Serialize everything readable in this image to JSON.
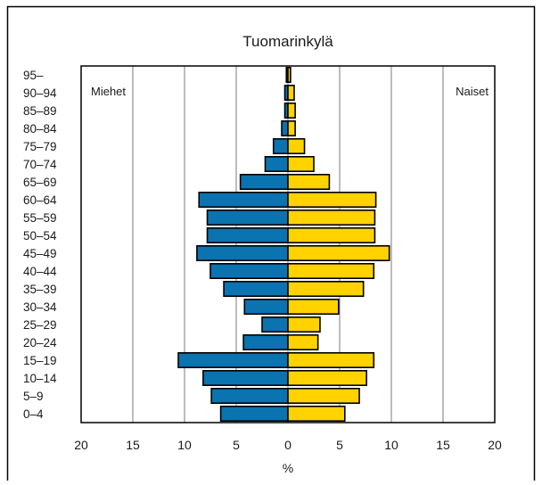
{
  "chart_data": {
    "type": "bar",
    "orientation": "horizontal",
    "subtype": "population-pyramid",
    "title": "Tuomarinkylä",
    "xlabel": "%",
    "xlim": [
      -20,
      20
    ],
    "xticks": [
      20,
      15,
      10,
      5,
      0,
      5,
      10,
      15,
      20
    ],
    "grid": true,
    "categories": [
      "0–4",
      "5–9",
      "10–14",
      "15–19",
      "20–24",
      "25–29",
      "30–34",
      "35–39",
      "40–44",
      "45–49",
      "50–54",
      "55–59",
      "60–64",
      "65–69",
      "70–74",
      "75–79",
      "80–84",
      "85–89",
      "90–94",
      "95–"
    ],
    "series": [
      {
        "name": "Miehet",
        "side": "left",
        "color": "#0a73b0",
        "values": [
          6.5,
          7.4,
          8.2,
          10.6,
          4.3,
          2.5,
          4.2,
          6.2,
          7.5,
          8.8,
          7.8,
          7.8,
          8.6,
          4.6,
          2.2,
          1.4,
          0.6,
          0.3,
          0.3,
          0.15
        ]
      },
      {
        "name": "Naiset",
        "side": "right",
        "color": "#ffd200",
        "values": [
          5.5,
          6.9,
          7.6,
          8.3,
          2.9,
          3.1,
          4.9,
          7.3,
          8.3,
          9.8,
          8.4,
          8.4,
          8.5,
          4.0,
          2.5,
          1.6,
          0.7,
          0.7,
          0.6,
          0.25
        ]
      }
    ]
  }
}
